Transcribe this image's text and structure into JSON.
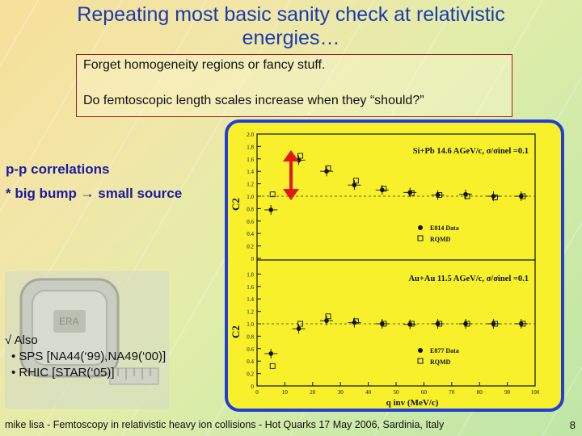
{
  "slide": {
    "title": "Repeating most basic sanity check at relativistic energies…",
    "note_line1": "Forget homogeneity regions or fancy stuff.",
    "note_line2": "Do femtoscopic length scales increase when they “should?”",
    "pp_line1": "p-p correlations",
    "pp_line2": "* big bump → small source",
    "also_head": "√ Also",
    "also_items": [
      "• SPS [NA44(‘99),NA49(‘00)]",
      "• RHIC [STAR(‘05)]"
    ],
    "footer": "mike lisa - Femtoscopy in relativistic heavy ion collisions - Hot Quarks 17 May 2006, Sardinia, Italy",
    "page_number": "8",
    "tape_label": "ERA"
  },
  "colors": {
    "title": "#1a3bb0",
    "accent_blue": "#1f3fd8",
    "arrow_red": "#e01818",
    "plot_bg": "#f7f02a"
  },
  "chart_data": {
    "type": "scatter",
    "panels": [
      {
        "name": "top",
        "label": "Si+Pb 14.6 AGeV/c, σ/σinel =0.1",
        "legend": [
          "E814 Data",
          "RQMD"
        ],
        "ylabel": "C2",
        "ylim": [
          0,
          2.0
        ],
        "yticks": [
          "2.0",
          "1.8",
          "1.6",
          "1.4",
          "1.2",
          "1.0",
          "0.8",
          "0.6",
          "0.4",
          "0.2",
          "0"
        ],
        "data_x": [
          5,
          15,
          25,
          35,
          45,
          55,
          65,
          75,
          85,
          95
        ],
        "data_y": [
          0.78,
          1.58,
          1.4,
          1.18,
          1.1,
          1.06,
          1.02,
          1.03,
          1.0,
          1.0
        ],
        "rqmd_x": [
          5,
          15,
          25,
          35,
          45,
          55,
          65,
          75,
          85,
          95
        ],
        "rqmd_y": [
          1.03,
          1.65,
          1.45,
          1.25,
          1.12,
          1.05,
          1.02,
          1.0,
          0.98,
          1.0
        ]
      },
      {
        "name": "bottom",
        "label": "Au+Au 11.5 AGeV/c, σ/σinel =0.1",
        "legend": [
          "E877 Data",
          "RQMD"
        ],
        "ylabel": "C2",
        "ylim": [
          0,
          2.0
        ],
        "yticks": [
          "1.8",
          "1.6",
          "1.4",
          "1.2",
          "1.0",
          "0.8",
          "0.6",
          "0.4",
          "0.2",
          "0"
        ],
        "data_x": [
          5,
          15,
          25,
          35,
          45,
          55,
          65,
          75,
          85,
          95
        ],
        "data_y": [
          0.52,
          0.92,
          1.05,
          1.02,
          1.0,
          0.99,
          1.0,
          1.0,
          1.0,
          1.0
        ],
        "rqmd_x": [
          5,
          15,
          25,
          35,
          45,
          55,
          65,
          75,
          85,
          95
        ],
        "rqmd_y": [
          0.32,
          1.0,
          1.12,
          1.04,
          1.0,
          1.0,
          1.0,
          1.0,
          1.0,
          1.0
        ]
      }
    ],
    "xlabel": "q inv (MeV/c)",
    "xlim": [
      0,
      100
    ],
    "xticks": [
      "0",
      "10",
      "20",
      "30",
      "40",
      "50",
      "60",
      "70",
      "80",
      "90",
      "100"
    ]
  }
}
